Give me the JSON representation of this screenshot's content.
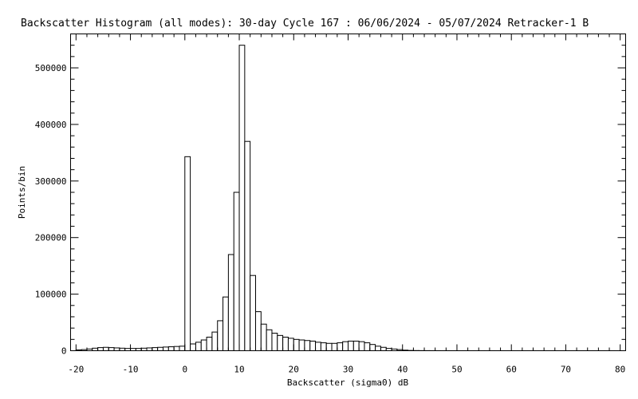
{
  "chart_data": {
    "type": "bar",
    "title": "Backscatter Histogram (all modes): 30-day Cycle 167 : 06/06/2024 - 05/07/2024 Retracker-1 B",
    "xlabel": "Backscatter (sigma0) dB",
    "ylabel": "Points/bin",
    "xlim": [
      -21,
      81
    ],
    "ylim": [
      0,
      560000
    ],
    "grid": false,
    "xticks": [
      -20,
      -10,
      0,
      10,
      20,
      30,
      40,
      50,
      60,
      70,
      80
    ],
    "xtick_labels": [
      "-20",
      "-10",
      "0",
      "10",
      "20",
      "30",
      "40",
      "50",
      "60",
      "70",
      "80"
    ],
    "yticks": [
      0,
      100000,
      200000,
      300000,
      400000,
      500000
    ],
    "ytick_labels": [
      "0",
      "100000",
      "200000",
      "300000",
      "400000",
      "500000"
    ],
    "bin_width": 1,
    "bin_starts": [
      -20,
      -19,
      -18,
      -17,
      -16,
      -15,
      -14,
      -13,
      -12,
      -11,
      -10,
      -9,
      -8,
      -7,
      -6,
      -5,
      -4,
      -3,
      -2,
      -1,
      0,
      1,
      2,
      3,
      4,
      5,
      6,
      7,
      8,
      9,
      10,
      11,
      12,
      13,
      14,
      15,
      16,
      17,
      18,
      19,
      20,
      21,
      22,
      23,
      24,
      25,
      26,
      27,
      28,
      29,
      30,
      31,
      32,
      33,
      34,
      35,
      36,
      37,
      38,
      39,
      40,
      41,
      42,
      43,
      44,
      45,
      46,
      47,
      48,
      49,
      50,
      51,
      52,
      53,
      54,
      55,
      56,
      57,
      58,
      59,
      60,
      61,
      62,
      63,
      64,
      65,
      66,
      67,
      68,
      69,
      70,
      71,
      72,
      73,
      74,
      75,
      76,
      77,
      78,
      79
    ],
    "values": [
      1500,
      2000,
      3000,
      4500,
      5500,
      6000,
      5500,
      5000,
      4500,
      4000,
      4000,
      4000,
      4500,
      5000,
      5500,
      6000,
      6500,
      7000,
      7500,
      8000,
      343000,
      12000,
      15000,
      19000,
      24000,
      33000,
      53000,
      95000,
      170000,
      280000,
      540000,
      370000,
      133000,
      69000,
      47000,
      37000,
      31000,
      27000,
      24000,
      22000,
      20000,
      19000,
      18000,
      17000,
      15000,
      14000,
      13000,
      13000,
      14000,
      16000,
      17000,
      17000,
      16000,
      14000,
      11000,
      8000,
      6000,
      4000,
      3000,
      2000,
      1000,
      500,
      300,
      200,
      150,
      100,
      80,
      60,
      50,
      40,
      30,
      30,
      20,
      20,
      20,
      10,
      10,
      10,
      10,
      10,
      10,
      10,
      10,
      10,
      10,
      10,
      10,
      10,
      10,
      10,
      10,
      10,
      10,
      10,
      10,
      10,
      10,
      10,
      10,
      10
    ]
  }
}
